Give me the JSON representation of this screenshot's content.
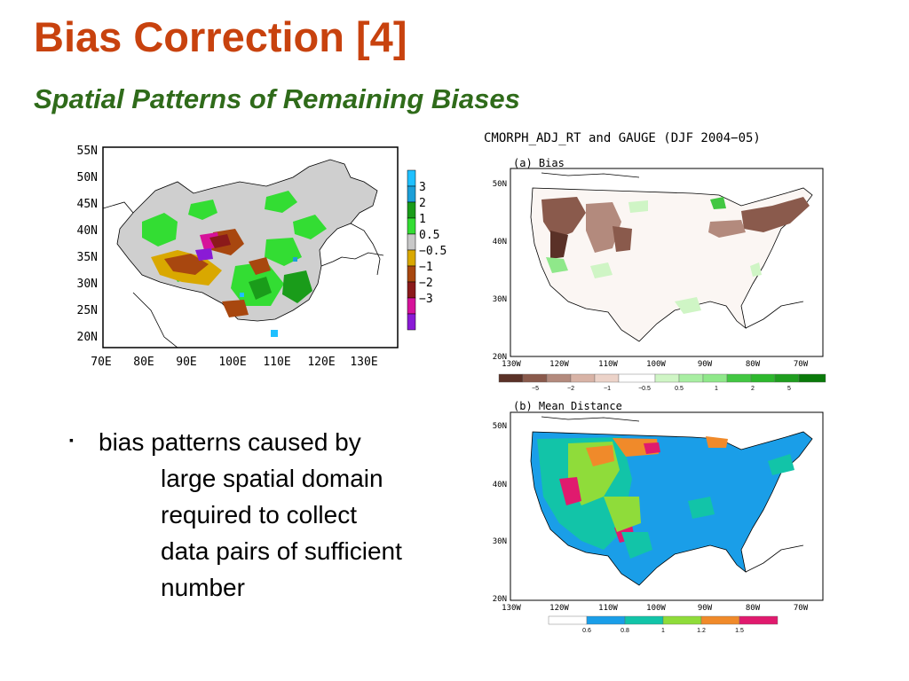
{
  "slide": {
    "title": "Bias Correction [4]",
    "subtitle": "Spatial Patterns of Remaining Biases",
    "bullet": {
      "mark": "▪",
      "lines": [
        "bias patterns caused by",
        "large spatial domain",
        "required to collect",
        "data pairs of sufficient",
        "number"
      ]
    }
  },
  "china_map": {
    "lat_labels": [
      "55N",
      "50N",
      "45N",
      "40N",
      "35N",
      "30N",
      "25N",
      "20N"
    ],
    "lon_labels": [
      "70E",
      "80E",
      "90E",
      "100E",
      "110E",
      "120E",
      "130E"
    ],
    "colorbar": {
      "labels": [
        "3",
        "2",
        "1",
        "0.5",
        "−0.5",
        "−1",
        "−2",
        "−3"
      ],
      "colors": [
        "#1fc0ff",
        "#1c9fd8",
        "#1a9c1a",
        "#33dd33",
        "#c8c8c8",
        "#d9a800",
        "#a8470f",
        "#8b1a1a",
        "#d6129a",
        "#8a1ad6"
      ]
    }
  },
  "us_panel": {
    "header": "CMORPH_ADJ_RT and GAUGE (DJF 2004−05)",
    "panel_a": {
      "label": "(a) Bias",
      "lat_labels": [
        "50N",
        "40N",
        "30N",
        "20N"
      ],
      "lon_labels": [
        "130W",
        "120W",
        "110W",
        "100W",
        "90W",
        "80W",
        "70W"
      ],
      "colorbar_labels": [
        "−5",
        "−2",
        "−1",
        "−0.5",
        "0.5",
        "1",
        "2",
        "5"
      ],
      "colorbar_colors": [
        "#5a3127",
        "#8a5a4c",
        "#b38a7d",
        "#ecd3c9",
        "#ffffff",
        "#cff5c5",
        "#8fe88a",
        "#42c742",
        "#1f9e1f",
        "#0a7a0a"
      ]
    },
    "panel_b": {
      "label": "(b) Mean Distance",
      "lat_labels": [
        "50N",
        "40N",
        "30N",
        "20N"
      ],
      "lon_labels": [
        "130W",
        "120W",
        "110W",
        "100W",
        "90W",
        "80W",
        "70W"
      ],
      "colorbar_labels": [
        "0.6",
        "0.8",
        "1",
        "1.2",
        "1.5"
      ],
      "colorbar_colors": [
        "#ffffff",
        "#1a9ee8",
        "#12c4a8",
        "#8fdc3a",
        "#f08a2a",
        "#e01a6e"
      ]
    }
  }
}
